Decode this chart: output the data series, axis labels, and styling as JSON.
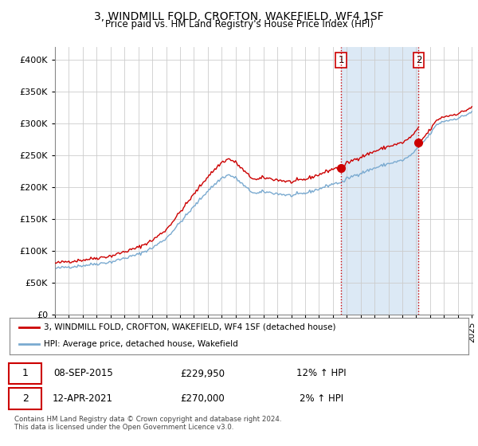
{
  "title": "3, WINDMILL FOLD, CROFTON, WAKEFIELD, WF4 1SF",
  "subtitle": "Price paid vs. HM Land Registry's House Price Index (HPI)",
  "ylim": [
    0,
    420000
  ],
  "hpi_color": "#7aaad0",
  "price_color": "#cc0000",
  "marker1_date_idx": 247,
  "marker1_price": 229950,
  "marker2_date_idx": 314,
  "marker2_price": 270000,
  "legend_label1": "3, WINDMILL FOLD, CROFTON, WAKEFIELD, WF4 1SF (detached house)",
  "legend_label2": "HPI: Average price, detached house, Wakefield",
  "table_row1_num": "1",
  "table_row1_date": "08-SEP-2015",
  "table_row1_price": "£229,950",
  "table_row1_hpi": "12% ↑ HPI",
  "table_row2_num": "2",
  "table_row2_date": "12-APR-2021",
  "table_row2_price": "£270,000",
  "table_row2_hpi": "2% ↑ HPI",
  "footer": "Contains HM Land Registry data © Crown copyright and database right 2024.\nThis data is licensed under the Open Government Licence v3.0.",
  "background_color": "#ffffff",
  "grid_color": "#cccccc",
  "shaded_color": "#dce9f5",
  "vline_color": "#cc0000"
}
